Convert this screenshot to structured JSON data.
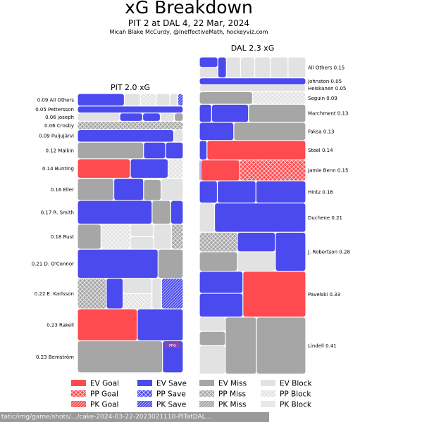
{
  "header": {
    "title": "xG Breakdown",
    "subtitle": "PIT 2 at DAL 4, 22 Mar, 2024",
    "credit": "Micah Blake McCurdy, @IneffectiveMath, hockeyviz.com"
  },
  "colors": {
    "goal": "#ff4a4f",
    "save": "#4a4aef",
    "miss": "#a6a6a6",
    "block": "#e2e2e2"
  },
  "chart_data": {
    "type": "bar",
    "panels": [
      {
        "team": "PIT",
        "title": "PIT 2.0 xG",
        "players": [
          {
            "name": "All Others",
            "xg": 0.09,
            "label": "0.09 All Others",
            "shots": [
              {
                "type": "save",
                "sit": "EV",
                "xg": 0.035
              },
              {
                "type": "block",
                "sit": "EV",
                "xg": 0.012
              },
              {
                "type": "block",
                "sit": "PP",
                "xg": 0.012
              },
              {
                "type": "block",
                "sit": "EV",
                "xg": 0.01
              },
              {
                "type": "block",
                "sit": "EV",
                "xg": 0.006
              },
              {
                "type": "save",
                "sit": "PK",
                "xg": 0.004
              }
            ]
          },
          {
            "name": "Pettersson",
            "xg": 0.05,
            "label": "0.05 Pettersson",
            "shots": [
              {
                "type": "save",
                "sit": "EV",
                "xg": 0.05
              }
            ]
          },
          {
            "name": "joseph",
            "xg": 0.06,
            "label": "0.06 joseph",
            "shots": [
              {
                "type": "block",
                "sit": "EV",
                "xg": 0.024
              },
              {
                "type": "save",
                "sit": "EV",
                "xg": 0.013
              },
              {
                "type": "save",
                "sit": "EV",
                "xg": 0.01
              },
              {
                "type": "block",
                "sit": "EV",
                "xg": 0.008
              },
              {
                "type": "miss",
                "sit": "EV",
                "xg": 0.005
              }
            ]
          },
          {
            "name": "Crosby",
            "xg": 0.06,
            "label": "0.06 Crosby",
            "shots": [
              {
                "type": "miss",
                "sit": "PP",
                "xg": 0.06
              }
            ]
          },
          {
            "name": "Puljujärvi",
            "xg": 0.09,
            "label": "0.09 Puljujärvi",
            "shots": [
              {
                "type": "save",
                "sit": "EV",
                "xg": 0.082
              },
              {
                "type": "block",
                "sit": "EV",
                "xg": 0.008
              }
            ]
          },
          {
            "name": "Malkin",
            "xg": 0.12,
            "label": "0.12 Malkin",
            "shots": [
              {
                "type": "miss",
                "sit": "EV",
                "xg": 0.075
              },
              {
                "type": "save",
                "sit": "EV",
                "xg": 0.025
              },
              {
                "type": "save",
                "sit": "EV",
                "xg": 0.02
              }
            ]
          },
          {
            "name": "Bunting",
            "xg": 0.14,
            "label": "0.14 Bunting",
            "shots": [
              {
                "type": "goal",
                "sit": "EV",
                "xg": 0.07
              },
              {
                "type": "save",
                "sit": "EV",
                "xg": 0.05
              },
              {
                "type": "block",
                "sit": "PP",
                "xg": 0.02
              }
            ]
          },
          {
            "name": "Eller",
            "xg": 0.16,
            "label": "0.16 Eller",
            "shots": [
              {
                "type": "miss",
                "sit": "EV",
                "xg": 0.055
              },
              {
                "type": "save",
                "sit": "EV",
                "xg": 0.045
              },
              {
                "type": "block",
                "sit": "EV",
                "xg": 0.0015
              },
              {
                "type": "miss",
                "sit": "EV",
                "xg": 0.025
              },
              {
                "type": "block",
                "sit": "EV",
                "xg": 0.0335
              }
            ]
          },
          {
            "name": "R. Smith",
            "xg": 0.17,
            "label": "0.17 R. Smith",
            "shots": [
              {
                "type": "save",
                "sit": "EV",
                "xg": 0.12
              },
              {
                "type": "miss",
                "sit": "EV",
                "xg": 0.03
              },
              {
                "type": "save",
                "sit": "EV",
                "xg": 0.02
              }
            ]
          },
          {
            "name": "Rust",
            "xg": 0.18,
            "label": "0.18 Rust",
            "shots": [
              {
                "type": "miss",
                "sit": "EV",
                "xg": 0.04
              },
              {
                "type": "block",
                "sit": "PP",
                "xg": 0.05
              },
              {
                "type": "block",
                "sit": "EV",
                "xg": 0.02
              },
              {
                "type": "block",
                "sit": "EV",
                "xg": 0.02
              },
              {
                "type": "block",
                "sit": "EV",
                "xg": 0.03
              },
              {
                "type": "miss",
                "sit": "PP",
                "xg": 0.02
              }
            ]
          },
          {
            "name": "D. O'Connor",
            "xg": 0.21,
            "label": "0.21 D. O'Connor",
            "shots": [
              {
                "type": "save",
                "sit": "EV",
                "xg": 0.16
              },
              {
                "type": "miss",
                "sit": "EV",
                "xg": 0.05
              }
            ]
          },
          {
            "name": "E. Karlsson",
            "xg": 0.22,
            "label": "0.22 E. Karlsson",
            "shots": [
              {
                "type": "miss",
                "sit": "PP",
                "xg": 0.06
              },
              {
                "type": "save",
                "sit": "EV",
                "xg": 0.035
              },
              {
                "type": "block",
                "sit": "EV",
                "xg": 0.03
              },
              {
                "type": "block",
                "sit": "PP",
                "xg": 0.03
              },
              {
                "type": "block",
                "sit": "EV",
                "xg": 0.02
              },
              {
                "type": "save",
                "sit": "PK",
                "xg": 0.045
              }
            ]
          },
          {
            "name": "Rakell",
            "xg": 0.23,
            "label": "0.23 Rakell",
            "shots": [
              {
                "type": "goal",
                "sit": "EV",
                "xg": 0.13
              },
              {
                "type": "save",
                "sit": "EV",
                "xg": 0.1
              }
            ]
          },
          {
            "name": "Bemström",
            "xg": 0.23,
            "label": "0.23 Bemström",
            "shots": [
              {
                "type": "miss",
                "sit": "EV",
                "xg": 0.185
              },
              {
                "type": "save",
                "sit": "EV",
                "xg": 0.045
              }
            ],
            "note": "PPG"
          }
        ]
      },
      {
        "team": "DAL",
        "title": "DAL 2.3 xG",
        "players": [
          {
            "name": "All Others",
            "xg": 0.15,
            "label": "All Others 0.15",
            "shots": [
              {
                "type": "save",
                "sit": "EV",
                "xg": 0.013
              },
              {
                "type": "block",
                "sit": "EV",
                "xg": 0.013
              },
              {
                "type": "save",
                "sit": "EV",
                "xg": 0.012
              },
              {
                "type": "block",
                "sit": "EV",
                "xg": 0.02
              },
              {
                "type": "block",
                "sit": "EV",
                "xg": 0.02
              },
              {
                "type": "block",
                "sit": "EV",
                "xg": 0.022
              },
              {
                "type": "block",
                "sit": "EV",
                "xg": 0.025
              },
              {
                "type": "block",
                "sit": "EV",
                "xg": 0.025
              }
            ]
          },
          {
            "name": "Johnston",
            "xg": 0.05,
            "label": "Johnston 0.05",
            "shots": [
              {
                "type": "save",
                "sit": "EV",
                "xg": 0.05
              }
            ]
          },
          {
            "name": "Heiskanen",
            "xg": 0.05,
            "label": "Heiskanen 0.05",
            "shots": [
              {
                "type": "block",
                "sit": "EV",
                "xg": 0.05
              }
            ]
          },
          {
            "name": "Seguin",
            "xg": 0.09,
            "label": "Seguin 0.09",
            "shots": [
              {
                "type": "miss",
                "sit": "EV",
                "xg": 0.045
              },
              {
                "type": "block",
                "sit": "PP",
                "xg": 0.045
              }
            ]
          },
          {
            "name": "Marchment",
            "xg": 0.13,
            "label": "Marchment 0.13",
            "shots": [
              {
                "type": "save",
                "sit": "EV",
                "xg": 0.015
              },
              {
                "type": "save",
                "sit": "EV",
                "xg": 0.045
              },
              {
                "type": "miss",
                "sit": "EV",
                "xg": 0.07
              }
            ]
          },
          {
            "name": "Faksa",
            "xg": 0.13,
            "label": "Faksa 0.13",
            "shots": [
              {
                "type": "save",
                "sit": "EV",
                "xg": 0.042
              },
              {
                "type": "miss",
                "sit": "EV",
                "xg": 0.088
              }
            ]
          },
          {
            "name": "Steel",
            "xg": 0.14,
            "label": "Steel 0.14",
            "shots": [
              {
                "type": "save",
                "sit": "EV",
                "xg": 0.01
              },
              {
                "type": "goal",
                "sit": "EV",
                "xg": 0.13
              }
            ]
          },
          {
            "name": "Jamie Benn",
            "xg": 0.15,
            "label": "Jamie Benn 0.15",
            "shots": [
              {
                "type": "save",
                "sit": "EV",
                "xg": 0.002
              },
              {
                "type": "goal",
                "sit": "EV",
                "xg": 0.055
              },
              {
                "type": "goal",
                "sit": "PP",
                "xg": 0.093
              }
            ]
          },
          {
            "name": "Hintz",
            "xg": 0.16,
            "label": "Hintz 0.16",
            "shots": [
              {
                "type": "save",
                "sit": "EV",
                "xg": 0.027
              },
              {
                "type": "save",
                "sit": "EV",
                "xg": 0.058
              },
              {
                "type": "save",
                "sit": "EV",
                "xg": 0.075
              }
            ]
          },
          {
            "name": "Duchene",
            "xg": 0.21,
            "label": "Duchene 0.21",
            "shots": [
              {
                "type": "block",
                "sit": "EV",
                "xg": 0.03
              },
              {
                "type": "save",
                "sit": "EV",
                "xg": 0.18
              }
            ]
          },
          {
            "name": "J. Robertson",
            "xg": 0.28,
            "label": "J. Robertson 0.28",
            "shots": [
              {
                "type": "miss",
                "sit": "PP",
                "xg": 0.05
              },
              {
                "type": "miss",
                "sit": "EV",
                "xg": 0.05
              },
              {
                "type": "save",
                "sit": "EV",
                "xg": 0.05
              },
              {
                "type": "block",
                "sit": "EV",
                "xg": 0.05
              },
              {
                "type": "save",
                "sit": "EV",
                "xg": 0.08
              }
            ]
          },
          {
            "name": "Pavelski",
            "xg": 0.33,
            "label": "Pavelski 0.33",
            "shots": [
              {
                "type": "save",
                "sit": "EV",
                "xg": 0.065
              },
              {
                "type": "save",
                "sit": "EV",
                "xg": 0.07
              },
              {
                "type": "goal",
                "sit": "EV",
                "xg": 0.195
              }
            ]
          },
          {
            "name": "Lindell",
            "xg": 0.41,
            "label": "Lindell 0.41",
            "shots": [
              {
                "type": "block",
                "sit": "EV",
                "xg": 0.025
              },
              {
                "type": "miss",
                "sit": "EV",
                "xg": 0.025
              },
              {
                "type": "block",
                "sit": "EV",
                "xg": 0.05
              },
              {
                "type": "miss",
                "sit": "EV",
                "xg": 0.12
              },
              {
                "type": "miss",
                "sit": "EV",
                "xg": 0.19
              }
            ]
          }
        ]
      }
    ],
    "legend": [
      {
        "label": "EV Goal",
        "type": "goal",
        "sit": "EV"
      },
      {
        "label": "EV Save",
        "type": "save",
        "sit": "EV"
      },
      {
        "label": "EV Miss",
        "type": "miss",
        "sit": "EV"
      },
      {
        "label": "EV Block",
        "type": "block",
        "sit": "EV"
      },
      {
        "label": "PP Goal",
        "type": "goal",
        "sit": "PP"
      },
      {
        "label": "PP Save",
        "type": "save",
        "sit": "PP"
      },
      {
        "label": "PP Miss",
        "type": "miss",
        "sit": "PP"
      },
      {
        "label": "PP Block",
        "type": "block",
        "sit": "PP"
      },
      {
        "label": "PK Goal",
        "type": "goal",
        "sit": "PK"
      },
      {
        "label": "PK Save",
        "type": "save",
        "sit": "PK"
      },
      {
        "label": "PK Miss",
        "type": "miss",
        "sit": "PK"
      },
      {
        "label": "PK Block",
        "type": "block",
        "sit": "PK"
      }
    ]
  },
  "status_bar": {
    "url": "tatic/img/game/shots/.../cake-2024-03-22-2023021110-PITatDAL..."
  }
}
